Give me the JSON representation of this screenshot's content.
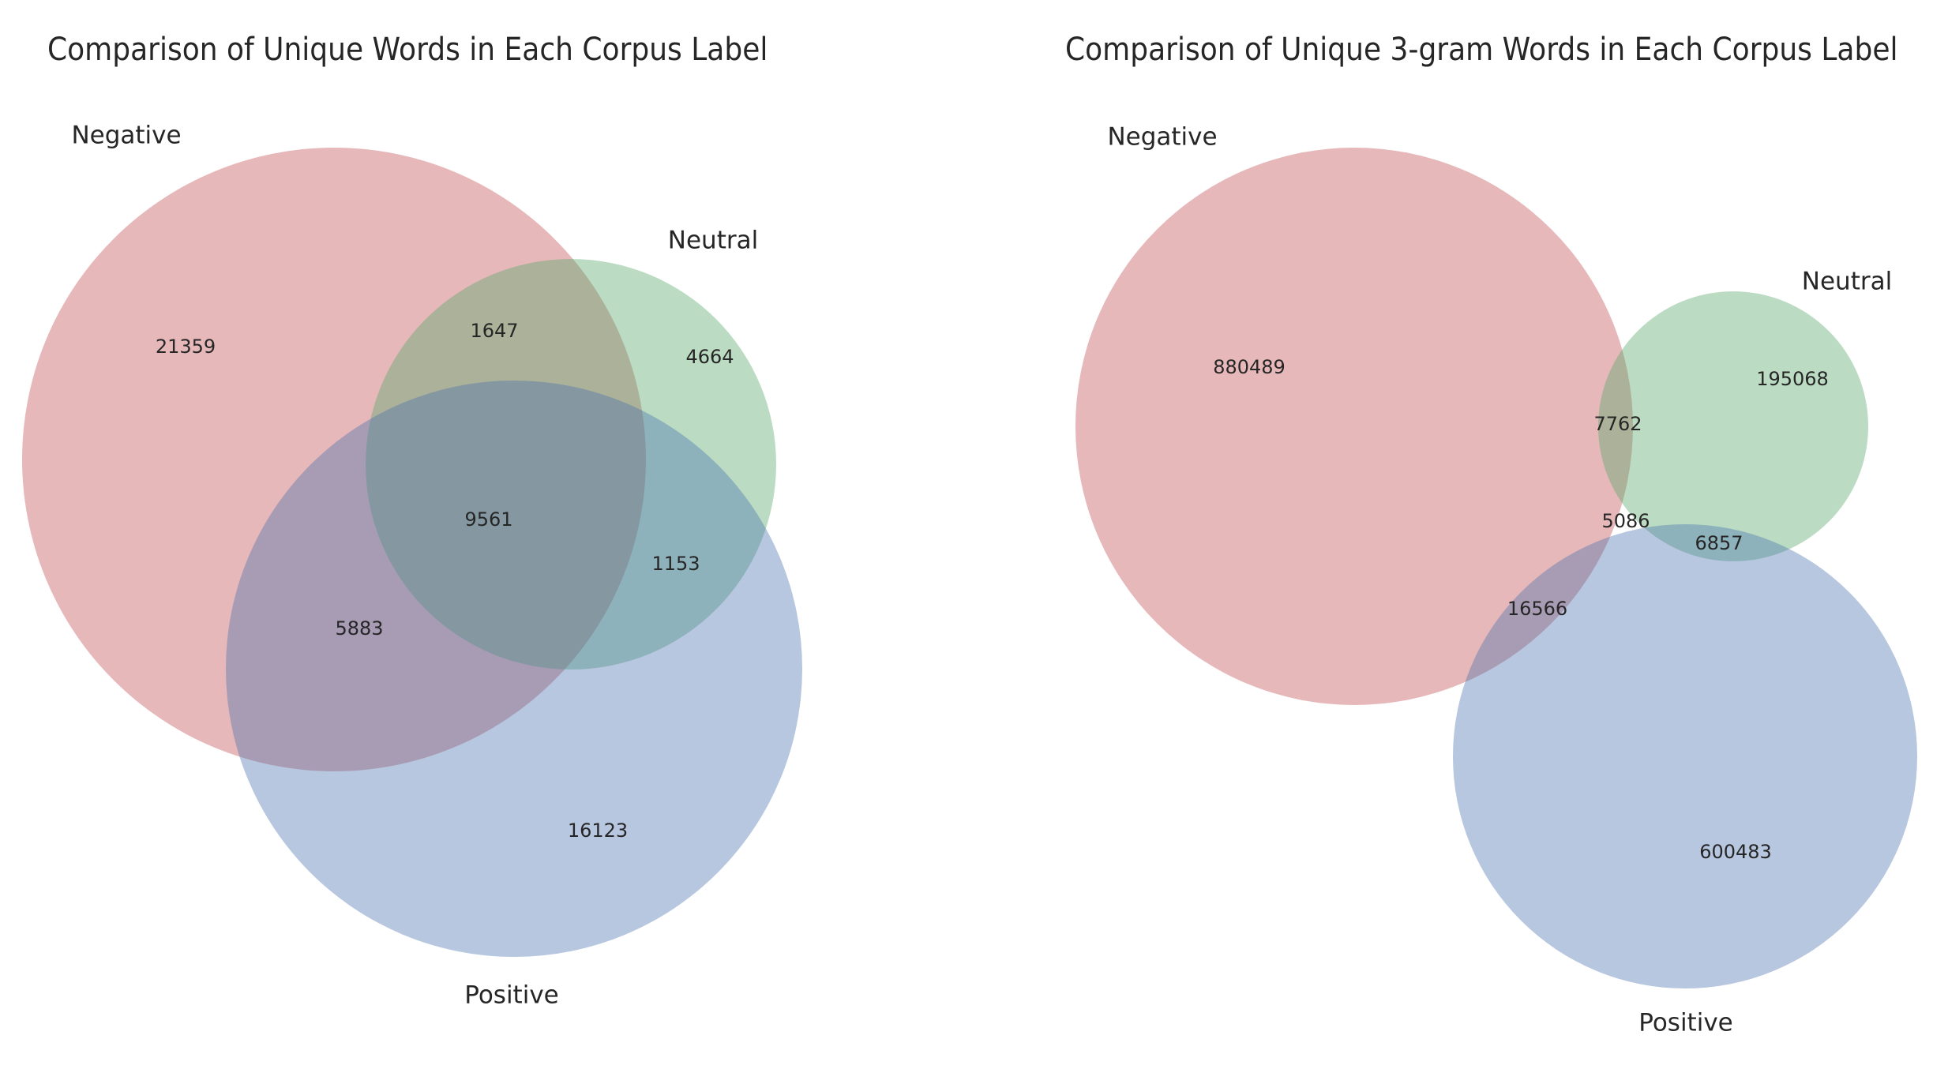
{
  "colors": {
    "negative": "#c44e52",
    "neutral": "#55a868",
    "positive": "#4c72b0",
    "fill_opacity": 0.4,
    "text": "#262626",
    "background": "#ffffff"
  },
  "chart_data": [
    {
      "type": "venn3",
      "title": "Comparison of Unique Words in Each Corpus Label",
      "set_labels": [
        "Negative",
        "Neutral",
        "Positive"
      ],
      "regions": {
        "negative_only": 21359,
        "neutral_only": 4664,
        "negative_neutral": 1647,
        "positive_only": 16123,
        "negative_positive": 5883,
        "neutral_positive": 1153,
        "all_three": 9561
      }
    },
    {
      "type": "venn3",
      "title": "Comparison of Unique 3-gram Words in Each Corpus Label",
      "set_labels": [
        "Negative",
        "Neutral",
        "Positive"
      ],
      "regions": {
        "negative_only": 880489,
        "neutral_only": 195068,
        "negative_neutral": 7762,
        "positive_only": 600483,
        "negative_positive": 16566,
        "neutral_positive": 6857,
        "all_three": 5086
      }
    }
  ]
}
